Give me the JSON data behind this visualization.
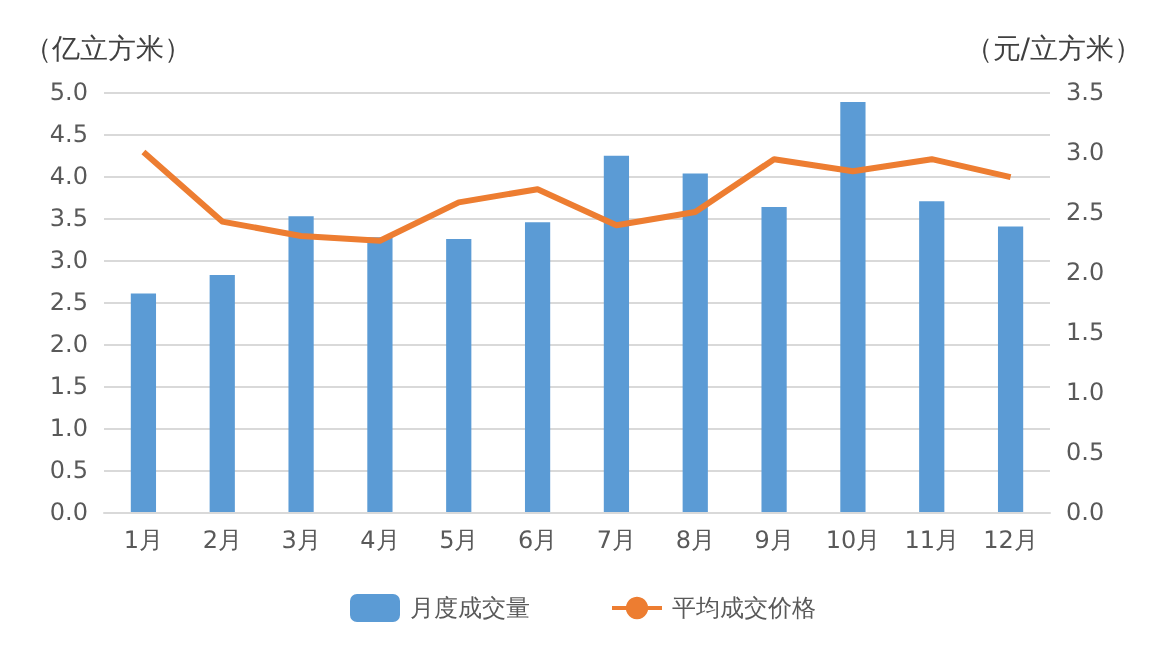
{
  "chart_data": {
    "type": "bar",
    "ylabel": "（亿立方米）",
    "y2label": "（元/立方米）",
    "categories": [
      "1月",
      "2月",
      "3月",
      "4月",
      "5月",
      "6月",
      "7月",
      "8月",
      "9月",
      "10月",
      "11月",
      "12月"
    ],
    "series": [
      {
        "name": "月度成交量",
        "color": "#5b9bd5",
        "values": [
          2.6,
          2.82,
          3.52,
          3.27,
          3.25,
          3.45,
          4.24,
          4.03,
          3.63,
          4.88,
          3.7,
          3.4
        ]
      },
      {
        "name": "平均成交价格",
        "type": "line",
        "axis": "y2",
        "color": "#ed7d31",
        "values": [
          3.0,
          2.42,
          2.3,
          2.26,
          2.58,
          2.69,
          2.39,
          2.5,
          2.94,
          2.84,
          2.94,
          2.79
        ]
      }
    ],
    "ylim": [
      0,
      5
    ],
    "yticks": [
      {
        "value": 0,
        "label": "0.0"
      },
      0.5,
      {
        "value": 1,
        "label": "1.0"
      },
      1.5,
      {
        "value": 2,
        "label": "2.0"
      },
      2.5,
      {
        "value": 3,
        "label": "3.0"
      },
      3.5,
      {
        "value": 4,
        "label": "4.0"
      },
      4.5,
      {
        "value": 5,
        "label": "5.0"
      }
    ],
    "y2lim": [
      0,
      3.5
    ],
    "y2ticks": [
      {
        "value": 0,
        "label": "0.0"
      },
      0.5,
      {
        "value": 1,
        "label": "1.0"
      },
      1.5,
      {
        "value": 2,
        "label": "2.0"
      },
      2.5,
      {
        "value": 3,
        "label": "3.0"
      },
      3.5
    ],
    "grid": "y",
    "legend": "bottom",
    "marker": "none",
    "line_style": "solid"
  }
}
